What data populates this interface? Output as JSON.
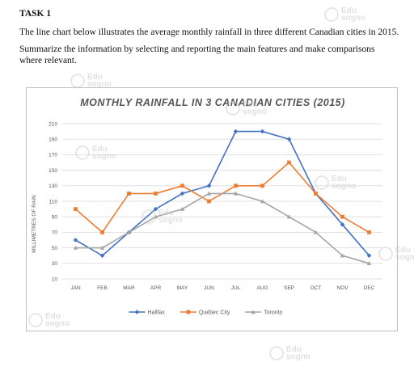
{
  "task": {
    "title": "TASK 1",
    "intro": "The line chart below illustrates the average monthly rainfall in three different Canadian cities in 2015.",
    "instruction": "Summarize the information by selecting and reporting the main features and make comparisons where relevant."
  },
  "watermark": {
    "line1": "Edu",
    "line2": "sogno"
  },
  "chart_data": {
    "type": "line",
    "title": "MONTHLY RAINFALL IN 3 CANADIAN CITIES (2015)",
    "ylabel": "MILLIMETRES OF RAIN",
    "xlabel": "",
    "categories": [
      "JAN",
      "FEB",
      "MAR",
      "APR",
      "MAY",
      "JUN",
      "JUL",
      "AUG",
      "SEP",
      "OCT",
      "NOV",
      "DEC"
    ],
    "ylim": [
      10,
      210
    ],
    "yticks": [
      10,
      30,
      50,
      70,
      90,
      110,
      130,
      150,
      170,
      190,
      210
    ],
    "grid": true,
    "legend_position": "bottom",
    "series": [
      {
        "name": "Halifax",
        "color": "#4472C4",
        "marker": "diamond",
        "values": [
          60,
          40,
          70,
          100,
          120,
          130,
          200,
          200,
          190,
          120,
          80,
          40
        ]
      },
      {
        "name": "Québec City",
        "color": "#ED7D31",
        "marker": "square",
        "values": [
          100,
          70,
          120,
          120,
          130,
          110,
          130,
          130,
          160,
          120,
          90,
          70
        ]
      },
      {
        "name": "Toronto",
        "color": "#A5A5A5",
        "marker": "triangle",
        "values": [
          50,
          50,
          70,
          90,
          100,
          120,
          120,
          110,
          90,
          70,
          40,
          30
        ]
      }
    ]
  }
}
